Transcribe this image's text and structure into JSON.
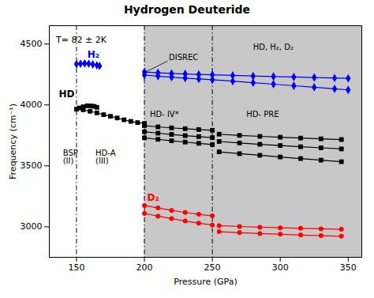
{
  "chart_data": {
    "type": "line",
    "title": "Hydrogen Deuteride",
    "xlabel": "Pressure (GPa)",
    "ylabel": "Frequency (cm⁻¹)",
    "xlim": [
      130,
      360
    ],
    "ylim": [
      2750,
      4650
    ],
    "xticks": [
      150,
      200,
      250,
      300,
      350
    ],
    "yticks": [
      3000,
      3500,
      4000,
      4500
    ],
    "vlines": [
      150,
      200,
      250
    ],
    "shade": {
      "from": 200,
      "color": "#c8c8c8"
    },
    "series": [
      {
        "color": "blue",
        "marker": "diamond",
        "line_style": "solid",
        "x": [
          150,
          153,
          156,
          159,
          162,
          165,
          167
        ],
        "values": [
          4335,
          4338,
          4340,
          4338,
          4332,
          4325,
          4320
        ]
      },
      {
        "color": "blue",
        "marker": "diamond",
        "line_style": "solid",
        "x": [
          200,
          210,
          220,
          230,
          240,
          250,
          265,
          280,
          295,
          310,
          325,
          340,
          350
        ],
        "values": [
          4270,
          4263,
          4258,
          4254,
          4250,
          4247,
          4242,
          4237,
          4233,
          4229,
          4225,
          4221,
          4218
        ]
      },
      {
        "color": "blue",
        "marker": "diamond",
        "line_style": "solid",
        "x": [
          200,
          210,
          220,
          230,
          240,
          250,
          265,
          280,
          295,
          310,
          325,
          340,
          350
        ],
        "values": [
          4245,
          4236,
          4228,
          4220,
          4213,
          4206,
          4195,
          4182,
          4170,
          4157,
          4145,
          4132,
          4123
        ]
      },
      {
        "color": "black",
        "marker": "square",
        "line_style": "none",
        "x": [
          150,
          152,
          155,
          158,
          161,
          163,
          165
        ],
        "values": [
          3965,
          3975,
          3985,
          3993,
          3992,
          3988,
          3980
        ]
      },
      {
        "color": "black",
        "marker": "square",
        "line_style": "solid",
        "x": [
          155,
          160,
          165,
          170,
          175,
          180,
          185,
          190,
          195,
          200
        ],
        "values": [
          3960,
          3948,
          3935,
          3920,
          3907,
          3893,
          3878,
          3865,
          3855,
          3848
        ]
      },
      {
        "color": "black",
        "marker": "square",
        "line_style": "solid",
        "x": [
          200,
          210,
          220,
          230,
          240,
          250
        ],
        "values": [
          3830,
          3820,
          3812,
          3805,
          3798,
          3792
        ]
      },
      {
        "color": "black",
        "marker": "square",
        "line_style": "solid",
        "x": [
          200,
          210,
          220,
          230,
          240,
          250
        ],
        "values": [
          3780,
          3768,
          3758,
          3748,
          3740,
          3732
        ]
      },
      {
        "color": "black",
        "marker": "square",
        "line_style": "solid",
        "x": [
          200,
          210,
          220,
          230,
          240,
          250
        ],
        "values": [
          3730,
          3718,
          3706,
          3695,
          3685,
          3675
        ]
      },
      {
        "color": "black",
        "marker": "square",
        "line_style": "solid",
        "x": [
          255,
          270,
          285,
          300,
          315,
          330,
          345
        ],
        "values": [
          3760,
          3750,
          3742,
          3735,
          3728,
          3722,
          3716
        ]
      },
      {
        "color": "black",
        "marker": "square",
        "line_style": "solid",
        "x": [
          255,
          270,
          285,
          300,
          315,
          330,
          345
        ],
        "values": [
          3700,
          3688,
          3677,
          3667,
          3657,
          3648,
          3639
        ]
      },
      {
        "color": "black",
        "marker": "square",
        "line_style": "solid",
        "x": [
          255,
          270,
          285,
          300,
          315,
          330,
          345
        ],
        "values": [
          3615,
          3600,
          3587,
          3573,
          3560,
          3547,
          3534
        ]
      },
      {
        "color": "red",
        "marker": "circle",
        "line_style": "solid",
        "x": [
          200,
          210,
          220,
          230,
          240,
          250
        ],
        "values": [
          3175,
          3155,
          3135,
          3118,
          3103,
          3090
        ]
      },
      {
        "color": "red",
        "marker": "circle",
        "line_style": "solid",
        "x": [
          200,
          210,
          220,
          230,
          240,
          250
        ],
        "values": [
          3110,
          3088,
          3067,
          3048,
          3030,
          3015
        ]
      },
      {
        "color": "red",
        "marker": "circle",
        "line_style": "solid",
        "x": [
          255,
          270,
          285,
          300,
          315,
          330,
          345
        ],
        "values": [
          3010,
          3003,
          2997,
          2992,
          2988,
          2984,
          2980
        ]
      },
      {
        "color": "red",
        "marker": "circle",
        "line_style": "solid",
        "x": [
          255,
          270,
          285,
          300,
          315,
          330,
          345
        ],
        "values": [
          2960,
          2952,
          2945,
          2939,
          2933,
          2928,
          2923
        ]
      }
    ],
    "annotations": [
      {
        "text": "T= 82 ± 2K",
        "x": 135,
        "y": 4560
      },
      {
        "text": "H₂",
        "x": 158,
        "y": 4385,
        "color": "blue"
      },
      {
        "text": "HD",
        "x": 137,
        "y": 4060,
        "color": "black"
      },
      {
        "text": "D₂",
        "x": 202,
        "y": 3215,
        "color": "red"
      },
      {
        "text": "BSP\n(II)",
        "x": 140,
        "y": 3630,
        "color": "black"
      },
      {
        "text": "HD-A\n(III)",
        "x": 164,
        "y": 3630,
        "color": "black"
      },
      {
        "text": "HD- IV*",
        "x": 204,
        "y": 3900,
        "color": "black"
      },
      {
        "text": "HD- PRE",
        "x": 275,
        "y": 3900,
        "color": "black"
      },
      {
        "text": "DISREC",
        "x": 218,
        "y": 4365,
        "arrow_to": [
          200,
          4265
        ]
      },
      {
        "text": "HD, H₂, D₂",
        "x": 280,
        "y": 4450,
        "color": "black"
      }
    ]
  }
}
